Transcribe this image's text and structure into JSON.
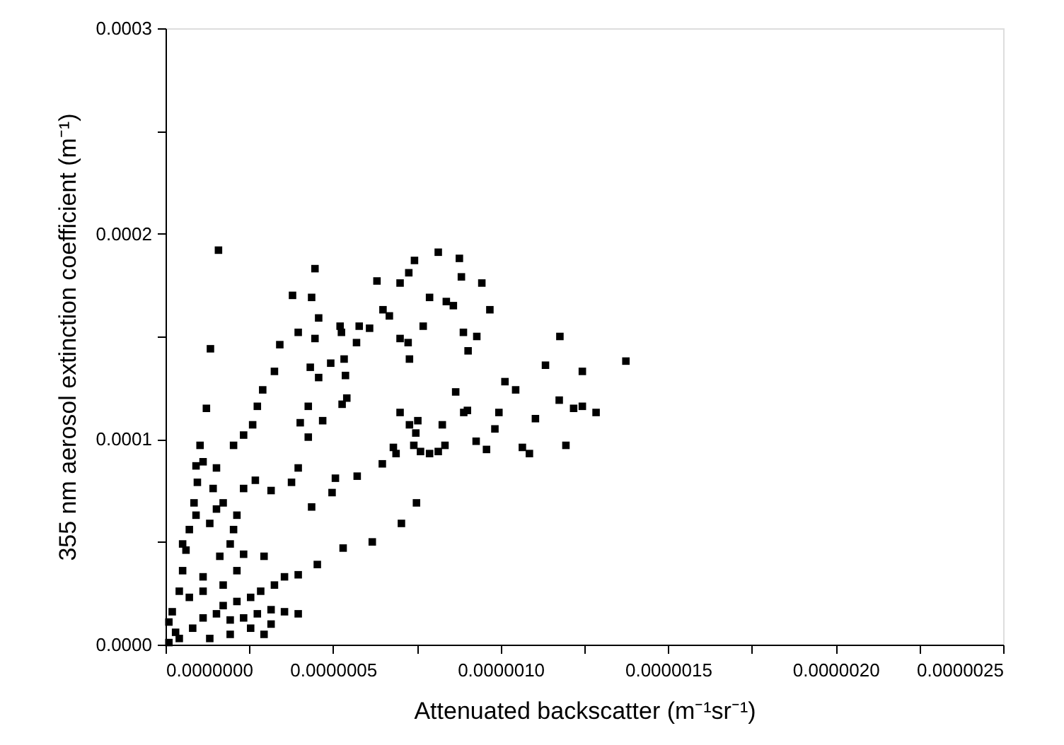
{
  "chart_data": {
    "type": "scatter",
    "xlabel": "Attenuated backscatter (m⁻¹sr⁻¹)",
    "ylabel": "355 nm aerosol extinction coefficient (m⁻¹)",
    "xlim": [
      0,
      2.5e-06
    ],
    "ylim": [
      0,
      0.0003
    ],
    "xticks": [
      {
        "value": 0,
        "label": "0.0000000"
      },
      {
        "value": 2.5e-07,
        "label": null
      },
      {
        "value": 5e-07,
        "label": "0.0000005"
      },
      {
        "value": 7.5e-07,
        "label": null
      },
      {
        "value": 1e-06,
        "label": "0.0000010"
      },
      {
        "value": 1.25e-06,
        "label": null
      },
      {
        "value": 1.5e-06,
        "label": "0.0000015"
      },
      {
        "value": 1.75e-06,
        "label": null
      },
      {
        "value": 2e-06,
        "label": "0.0000020"
      },
      {
        "value": 2.25e-06,
        "label": null
      },
      {
        "value": 2.5e-06,
        "label": "0.0000025"
      }
    ],
    "yticks": [
      {
        "value": 0,
        "label": "0.0000"
      },
      {
        "value": 5e-05,
        "label": null
      },
      {
        "value": 0.0001,
        "label": "0.0001"
      },
      {
        "value": 0.00015,
        "label": null
      },
      {
        "value": 0.0002,
        "label": "0.0002"
      },
      {
        "value": 0.00025,
        "label": null
      },
      {
        "value": 0.0003,
        "label": "0.0003"
      }
    ],
    "marker": "square",
    "x": [
      1.58e-07,
      1.34e-07,
      1.22e-07,
      1.03e-07,
      4.46e-07,
      3.79e-07,
      4.36e-07,
      3.96e-07,
      3.41e-07,
      3.25e-07,
      2.9e-07,
      2.74e-07,
      2.6e-07,
      2.33e-07,
      2.03e-07,
      4.57e-07,
      4.46e-07,
      4.32e-07,
      4.57e-07,
      4.26e-07,
      4.69e-07,
      4.02e-07,
      4.26e-07,
      3.96e-07,
      3.76e-07,
      2.68e-07,
      3.15e-07,
      4.36e-07,
      6.31e-07,
      7e-07,
      7.26e-07,
      7.43e-07,
      8.14e-07,
      8.77e-07,
      8.83e-07,
      9.44e-07,
      7.88e-07,
      8.38e-07,
      8.59e-07,
      9.68e-07,
      6.49e-07,
      6.68e-07,
      7.69e-07,
      7e-07,
      7.24e-07,
      7.28e-07,
      8.89e-07,
      9.29e-07,
      9.03e-07,
      5.21e-07,
      5.78e-07,
      6.09e-07,
      5.25e-07,
      5.7e-07,
      5.33e-07,
      4.93e-07,
      5.37e-07,
      5.41e-07,
      5.27e-07,
      8.66e-07,
      8.26e-07,
      8.34e-07,
      8.9e-07,
      9.01e-07,
      7e-07,
      7.28e-07,
      7.53e-07,
      7.47e-07,
      7.41e-07,
      7.61e-07,
      7.88e-07,
      8.14e-07,
      6.88e-07,
      6.8e-07,
      6.47e-07,
      5.72e-07,
      5.07e-07,
      4.97e-07,
      7.49e-07,
      7.04e-07,
      6.17e-07,
      5.3e-07,
      4.53e-07,
      9.27e-07,
      9.58e-07,
      9.83e-07,
      9.95e-07,
      1.013e-06,
      1.045e-06,
      1.104e-06,
      1.134e-06,
      1.065e-06,
      1.086e-06,
      1.175e-06,
      1.177e-06,
      1.195e-06,
      1.218e-06,
      1.244e-06,
      1.244e-06,
      1.285e-06,
      1.374e-06,
      3.96e-07,
      3.55e-07,
      3.25e-07,
      2.84e-07,
      2.54e-07,
      2.13e-07,
      1.72e-07,
      3.96e-07,
      3.55e-07,
      3.15e-07,
      2.74e-07,
      2.33e-07,
      1.93e-07,
      1.52e-07,
      3.15e-07,
      2.54e-07,
      1.93e-07,
      2.94e-07,
      1.32e-07,
      3e-08,
      1e-08,
      2e-08,
      4.1e-08,
      5.1e-08,
      6.1e-08,
      7.1e-08,
      8.5e-08,
      9.5e-08,
      9.1e-08,
      1.12e-07,
      1.52e-07,
      1.42e-07,
      1.72e-07,
      2.13e-07,
      1.93e-07,
      1.62e-07,
      2.33e-07,
      2.94e-07,
      1.12e-07,
      7.1e-08,
      1.12e-07,
      1.72e-07,
      2.13e-07,
      9.1e-08,
      1.32e-07,
      5.1e-08,
      2.33e-07,
      2.03e-07,
      1.52e-07,
      1e-08,
      4.1e-08,
      8.1e-08,
      1.12e-07
    ],
    "series": [
      {
        "color": "#000000",
        "values": [
          0.000192,
          0.000144,
          0.000115,
          9.7e-05,
          0.000183,
          0.00017,
          0.000169,
          0.000152,
          0.000146,
          0.000133,
          0.000124,
          0.000116,
          0.000107,
          0.000102,
          9.7e-05,
          0.000159,
          0.000149,
          0.000135,
          0.00013,
          0.000116,
          0.000109,
          0.000108,
          0.000101,
          8.6e-05,
          7.9e-05,
          8e-05,
          7.5e-05,
          6.7e-05,
          0.000177,
          0.000176,
          0.000181,
          0.000187,
          0.000191,
          0.000188,
          0.000179,
          0.000176,
          0.000169,
          0.000167,
          0.000165,
          0.000163,
          0.000163,
          0.00016,
          0.000155,
          0.000149,
          0.000147,
          0.000139,
          0.000152,
          0.00015,
          0.000143,
          0.000155,
          0.000155,
          0.000154,
          0.000152,
          0.000147,
          0.000139,
          0.000137,
          0.000131,
          0.00012,
          0.000117,
          0.000123,
          0.000107,
          9.7e-05,
          0.000113,
          0.000114,
          0.000113,
          0.000107,
          0.000109,
          0.000103,
          9.7e-05,
          9.4e-05,
          9.3e-05,
          9.4e-05,
          9.3e-05,
          9.6e-05,
          8.8e-05,
          8.2e-05,
          8.1e-05,
          7.4e-05,
          6.9e-05,
          5.9e-05,
          5e-05,
          4.7e-05,
          3.9e-05,
          9.9e-05,
          9.5e-05,
          0.000105,
          0.000113,
          0.000128,
          0.000124,
          0.00011,
          0.000136,
          9.6e-05,
          9.3e-05,
          0.000119,
          0.00015,
          9.7e-05,
          0.000115,
          0.000133,
          0.000116,
          0.000113,
          0.000138,
          3.4e-05,
          3.3e-05,
          2.9e-05,
          2.6e-05,
          2.3e-05,
          2.1e-05,
          1.9e-05,
          1.5e-05,
          1.6e-05,
          1.7e-05,
          1.5e-05,
          1.3e-05,
          1.2e-05,
          1.5e-05,
          1e-05,
          8e-06,
          5e-06,
          5e-06,
          3e-06,
          6e-06,
          1e-06,
          1.6e-05,
          2.6e-05,
          3.6e-05,
          4.6e-05,
          5.6e-05,
          6.9e-05,
          7.9e-05,
          8.7e-05,
          8.9e-05,
          8.6e-05,
          7.6e-05,
          6.9e-05,
          6.3e-05,
          4.9e-05,
          4.3e-05,
          4.4e-05,
          4.3e-05,
          3.3e-05,
          2.3e-05,
          2.6e-05,
          2.9e-05,
          3.6e-05,
          6.3e-05,
          5.9e-05,
          4.9e-05,
          7.6e-05,
          5.6e-05,
          6.6e-05,
          1.1e-05,
          3e-06,
          8e-06,
          1.3e-05
        ]
      }
    ]
  }
}
